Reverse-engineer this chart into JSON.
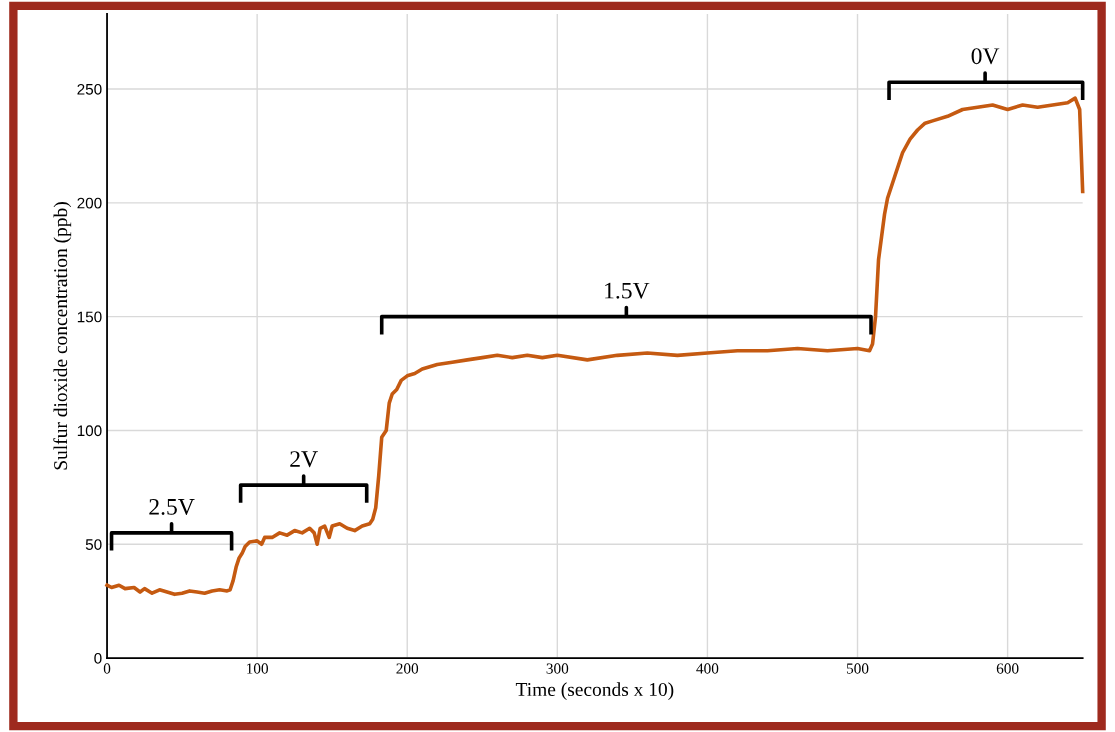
{
  "chart_data": {
    "type": "line",
    "xlabel": "Time (seconds x 10)",
    "ylabel": "Sulfur dioxide concentration (ppb)",
    "xlim": [
      0,
      650
    ],
    "xticks": [
      0,
      100,
      200,
      300,
      400,
      500,
      600
    ],
    "ylim": [
      0,
      283
    ],
    "yticks": [
      0,
      50,
      100,
      150,
      200,
      250
    ],
    "grid": true,
    "marker": "none",
    "line_style": "solid",
    "series": [
      {
        "color": "#c55a11",
        "x": [
          0,
          3,
          8,
          12,
          18,
          22,
          25,
          30,
          35,
          40,
          45,
          50,
          55,
          60,
          65,
          70,
          75,
          80,
          82,
          84,
          86,
          88,
          90,
          92,
          95,
          100,
          103,
          105,
          110,
          115,
          120,
          125,
          130,
          135,
          138,
          140,
          142,
          145,
          148,
          150,
          155,
          160,
          165,
          170,
          175,
          177,
          179,
          181,
          183,
          186,
          188,
          190,
          193,
          196,
          200,
          205,
          210,
          215,
          220,
          230,
          240,
          250,
          260,
          270,
          280,
          290,
          300,
          320,
          340,
          360,
          380,
          400,
          420,
          440,
          460,
          480,
          500,
          508,
          510,
          512,
          514,
          516,
          518,
          520,
          525,
          530,
          535,
          540,
          545,
          550,
          560,
          570,
          580,
          590,
          600,
          610,
          620,
          630,
          640,
          645,
          648,
          650
        ],
        "values": [
          32,
          31,
          32,
          30.5,
          31,
          29,
          30.5,
          28.5,
          30,
          29,
          28,
          28.5,
          29.5,
          29,
          28.5,
          29.5,
          30,
          29.5,
          30,
          34,
          40,
          44,
          46,
          49,
          51,
          51.5,
          50,
          53,
          53,
          55,
          54,
          56,
          55,
          57,
          55,
          50,
          57,
          58,
          53,
          58,
          59,
          57,
          56,
          58,
          59,
          61,
          66,
          80,
          97,
          100,
          112,
          116,
          118,
          122,
          124,
          125,
          127,
          128,
          129,
          130,
          131,
          132,
          133,
          132,
          133,
          132,
          133,
          131,
          133,
          134,
          133,
          134,
          135,
          135,
          136,
          135,
          136,
          135,
          138,
          150,
          175,
          185,
          195,
          202,
          212,
          222,
          228,
          232,
          235,
          236,
          238,
          241,
          242,
          243,
          241,
          243,
          242,
          243,
          244,
          246,
          241,
          205
        ]
      },
      {
        "color": "#000000",
        "x": [
          3,
          3,
          43,
          43,
          43,
          83,
          83
        ],
        "values": [
          48,
          55,
          55,
          59,
          55,
          55,
          48
        ]
      },
      {
        "color": "#000000",
        "x": [
          89,
          89,
          131,
          131,
          131,
          173,
          173
        ],
        "values": [
          69,
          76,
          76,
          80,
          76,
          76,
          69
        ]
      },
      {
        "color": "#000000",
        "x": [
          183,
          183,
          346,
          346,
          346,
          509,
          509
        ],
        "values": [
          143,
          150,
          150,
          154,
          150,
          150,
          143
        ]
      },
      {
        "color": "#000000",
        "x": [
          521,
          521,
          585,
          585,
          585,
          650,
          650
        ],
        "values": [
          246,
          253,
          253,
          257,
          253,
          253,
          246
        ]
      }
    ],
    "annotations": [
      {
        "text": "2.5V",
        "x": 43,
        "y": 59
      },
      {
        "text": "2V",
        "x": 131,
        "y": 80
      },
      {
        "text": "1.5V",
        "x": 346,
        "y": 154
      },
      {
        "text": "0V",
        "x": 585,
        "y": 257
      }
    ]
  }
}
